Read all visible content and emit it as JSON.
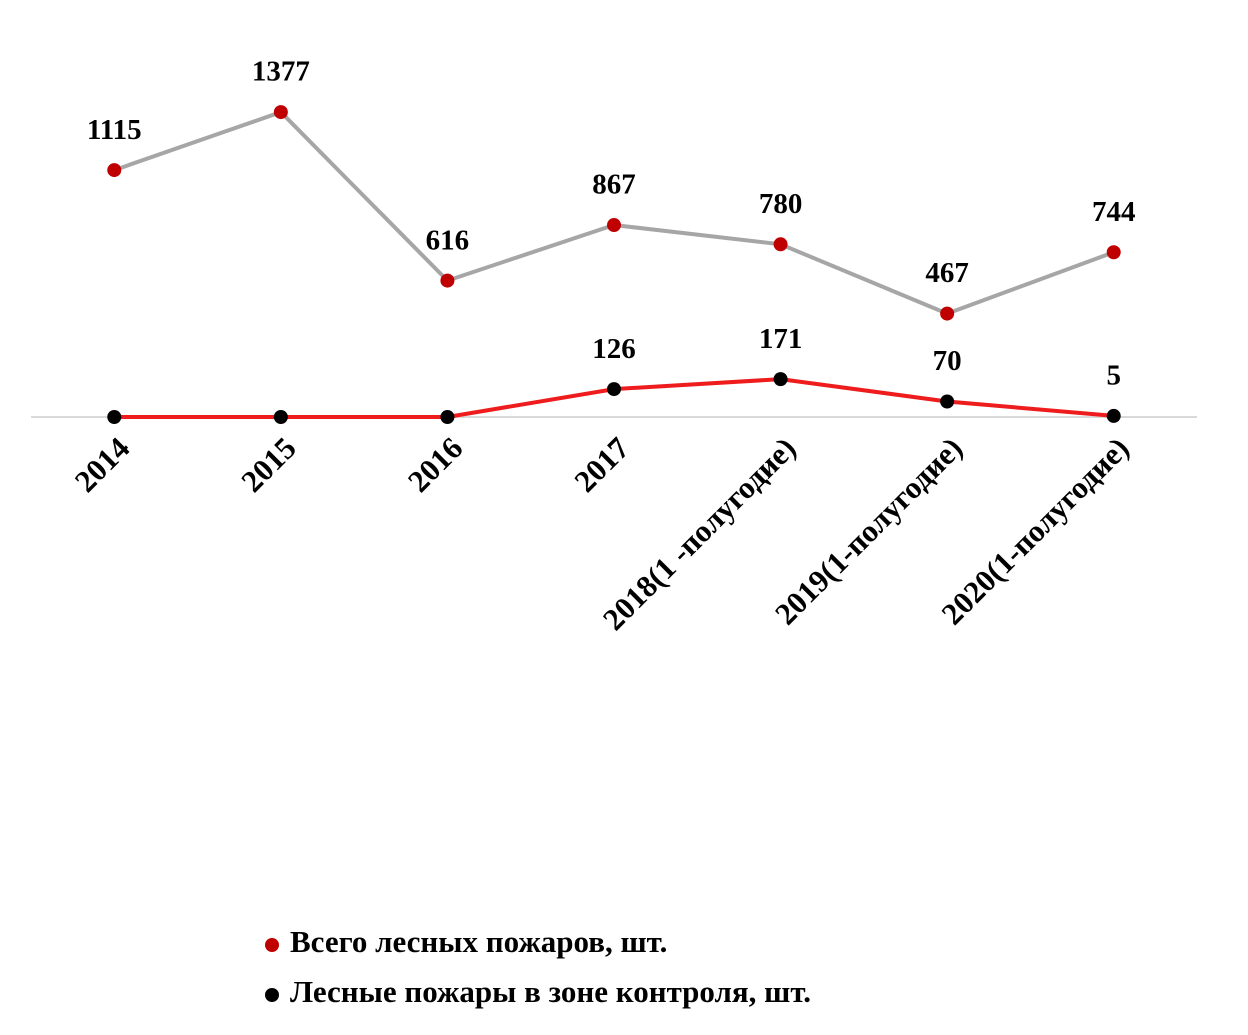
{
  "chart_data": {
    "type": "line",
    "categories": [
      "2014",
      "2015",
      "2016",
      "2017",
      "2018(1 -полугодие)",
      "2019(1-полугодие)",
      "2020(1-полугодие)"
    ],
    "series": [
      {
        "name": "Всего лесных пожаров, шт.",
        "color": "#a6a6a6",
        "marker_color": "#c00000",
        "values": [
          1115,
          1377,
          616,
          867,
          780,
          467,
          744
        ]
      },
      {
        "name": "Лесные пожары в зоне контроля, шт.",
        "color": "#ee1c1c",
        "marker_color": "#000000",
        "values": [
          0,
          0,
          0,
          126,
          171,
          70,
          5
        ],
        "value_labels": [
          null,
          null,
          null,
          "126",
          "171",
          "70",
          "5"
        ]
      }
    ],
    "ylim": [
      0,
      1400
    ],
    "zero_line": true,
    "legend": "bottom"
  }
}
